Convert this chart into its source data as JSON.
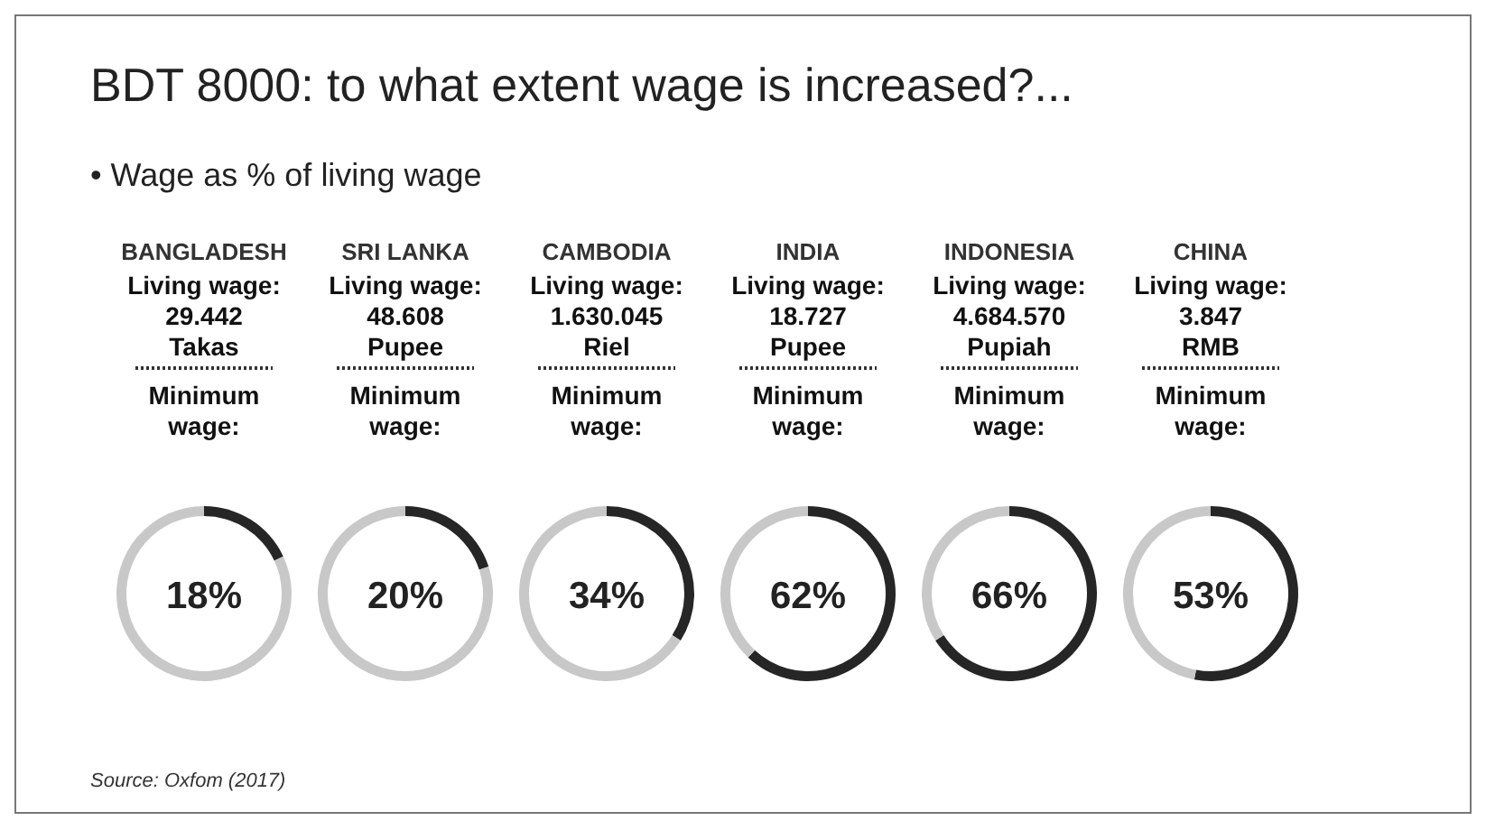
{
  "chart_data": [
    {
      "type": "other",
      "title": "BDT 8000: to what extent wage is increased?...",
      "subtitle": "• Wage as % of living wage",
      "annotations": [
        "Source: Oxfom (2017)"
      ]
    },
    {
      "type": "donut",
      "title": "BANGLADESH",
      "annotations": [
        "Living wage:",
        "29.442",
        "Takas",
        "Minimum",
        "wage:",
        "18%"
      ],
      "categories": [
        null,
        null
      ],
      "values": [
        18,
        82
      ],
      "colors": [
        "#262626",
        "#c8c8c8"
      ]
    },
    {
      "type": "donut",
      "title": "SRI LANKA",
      "annotations": [
        "Living wage:",
        "48.608",
        "Pupee",
        "Minimum",
        "wage:",
        "20%"
      ],
      "categories": [
        null,
        null
      ],
      "values": [
        20,
        80
      ],
      "colors": [
        "#262626",
        "#c8c8c8"
      ]
    },
    {
      "type": "donut",
      "title": "CAMBODIA",
      "annotations": [
        "Living wage:",
        "1.630.045",
        "Riel",
        "Minimum",
        "wage:",
        "34%"
      ],
      "categories": [
        null,
        null
      ],
      "values": [
        34,
        66
      ],
      "colors": [
        "#262626",
        "#c8c8c8"
      ]
    },
    {
      "type": "donut",
      "title": "INDIA",
      "annotations": [
        "Living wage:",
        "18.727",
        "Pupee",
        "Minimum",
        "wage:",
        "62%"
      ],
      "categories": [
        null,
        null
      ],
      "values": [
        62,
        38
      ],
      "colors": [
        "#262626",
        "#c8c8c8"
      ]
    },
    {
      "type": "donut",
      "title": "INDONESIA",
      "annotations": [
        "Living wage:",
        "4.684.570",
        "Pupiah",
        "Minimum",
        "wage:",
        "66%"
      ],
      "categories": [
        null,
        null
      ],
      "values": [
        66,
        34
      ],
      "colors": [
        "#262626",
        "#c8c8c8"
      ]
    },
    {
      "type": "donut",
      "title": "CHINA",
      "annotations": [
        "Living wage:",
        "3.847",
        "RMB",
        "Minimum",
        "wage:",
        "53%"
      ],
      "categories": [
        null,
        null
      ],
      "values": [
        53,
        47
      ],
      "colors": [
        "#262626",
        "#c8c8c8"
      ]
    }
  ]
}
